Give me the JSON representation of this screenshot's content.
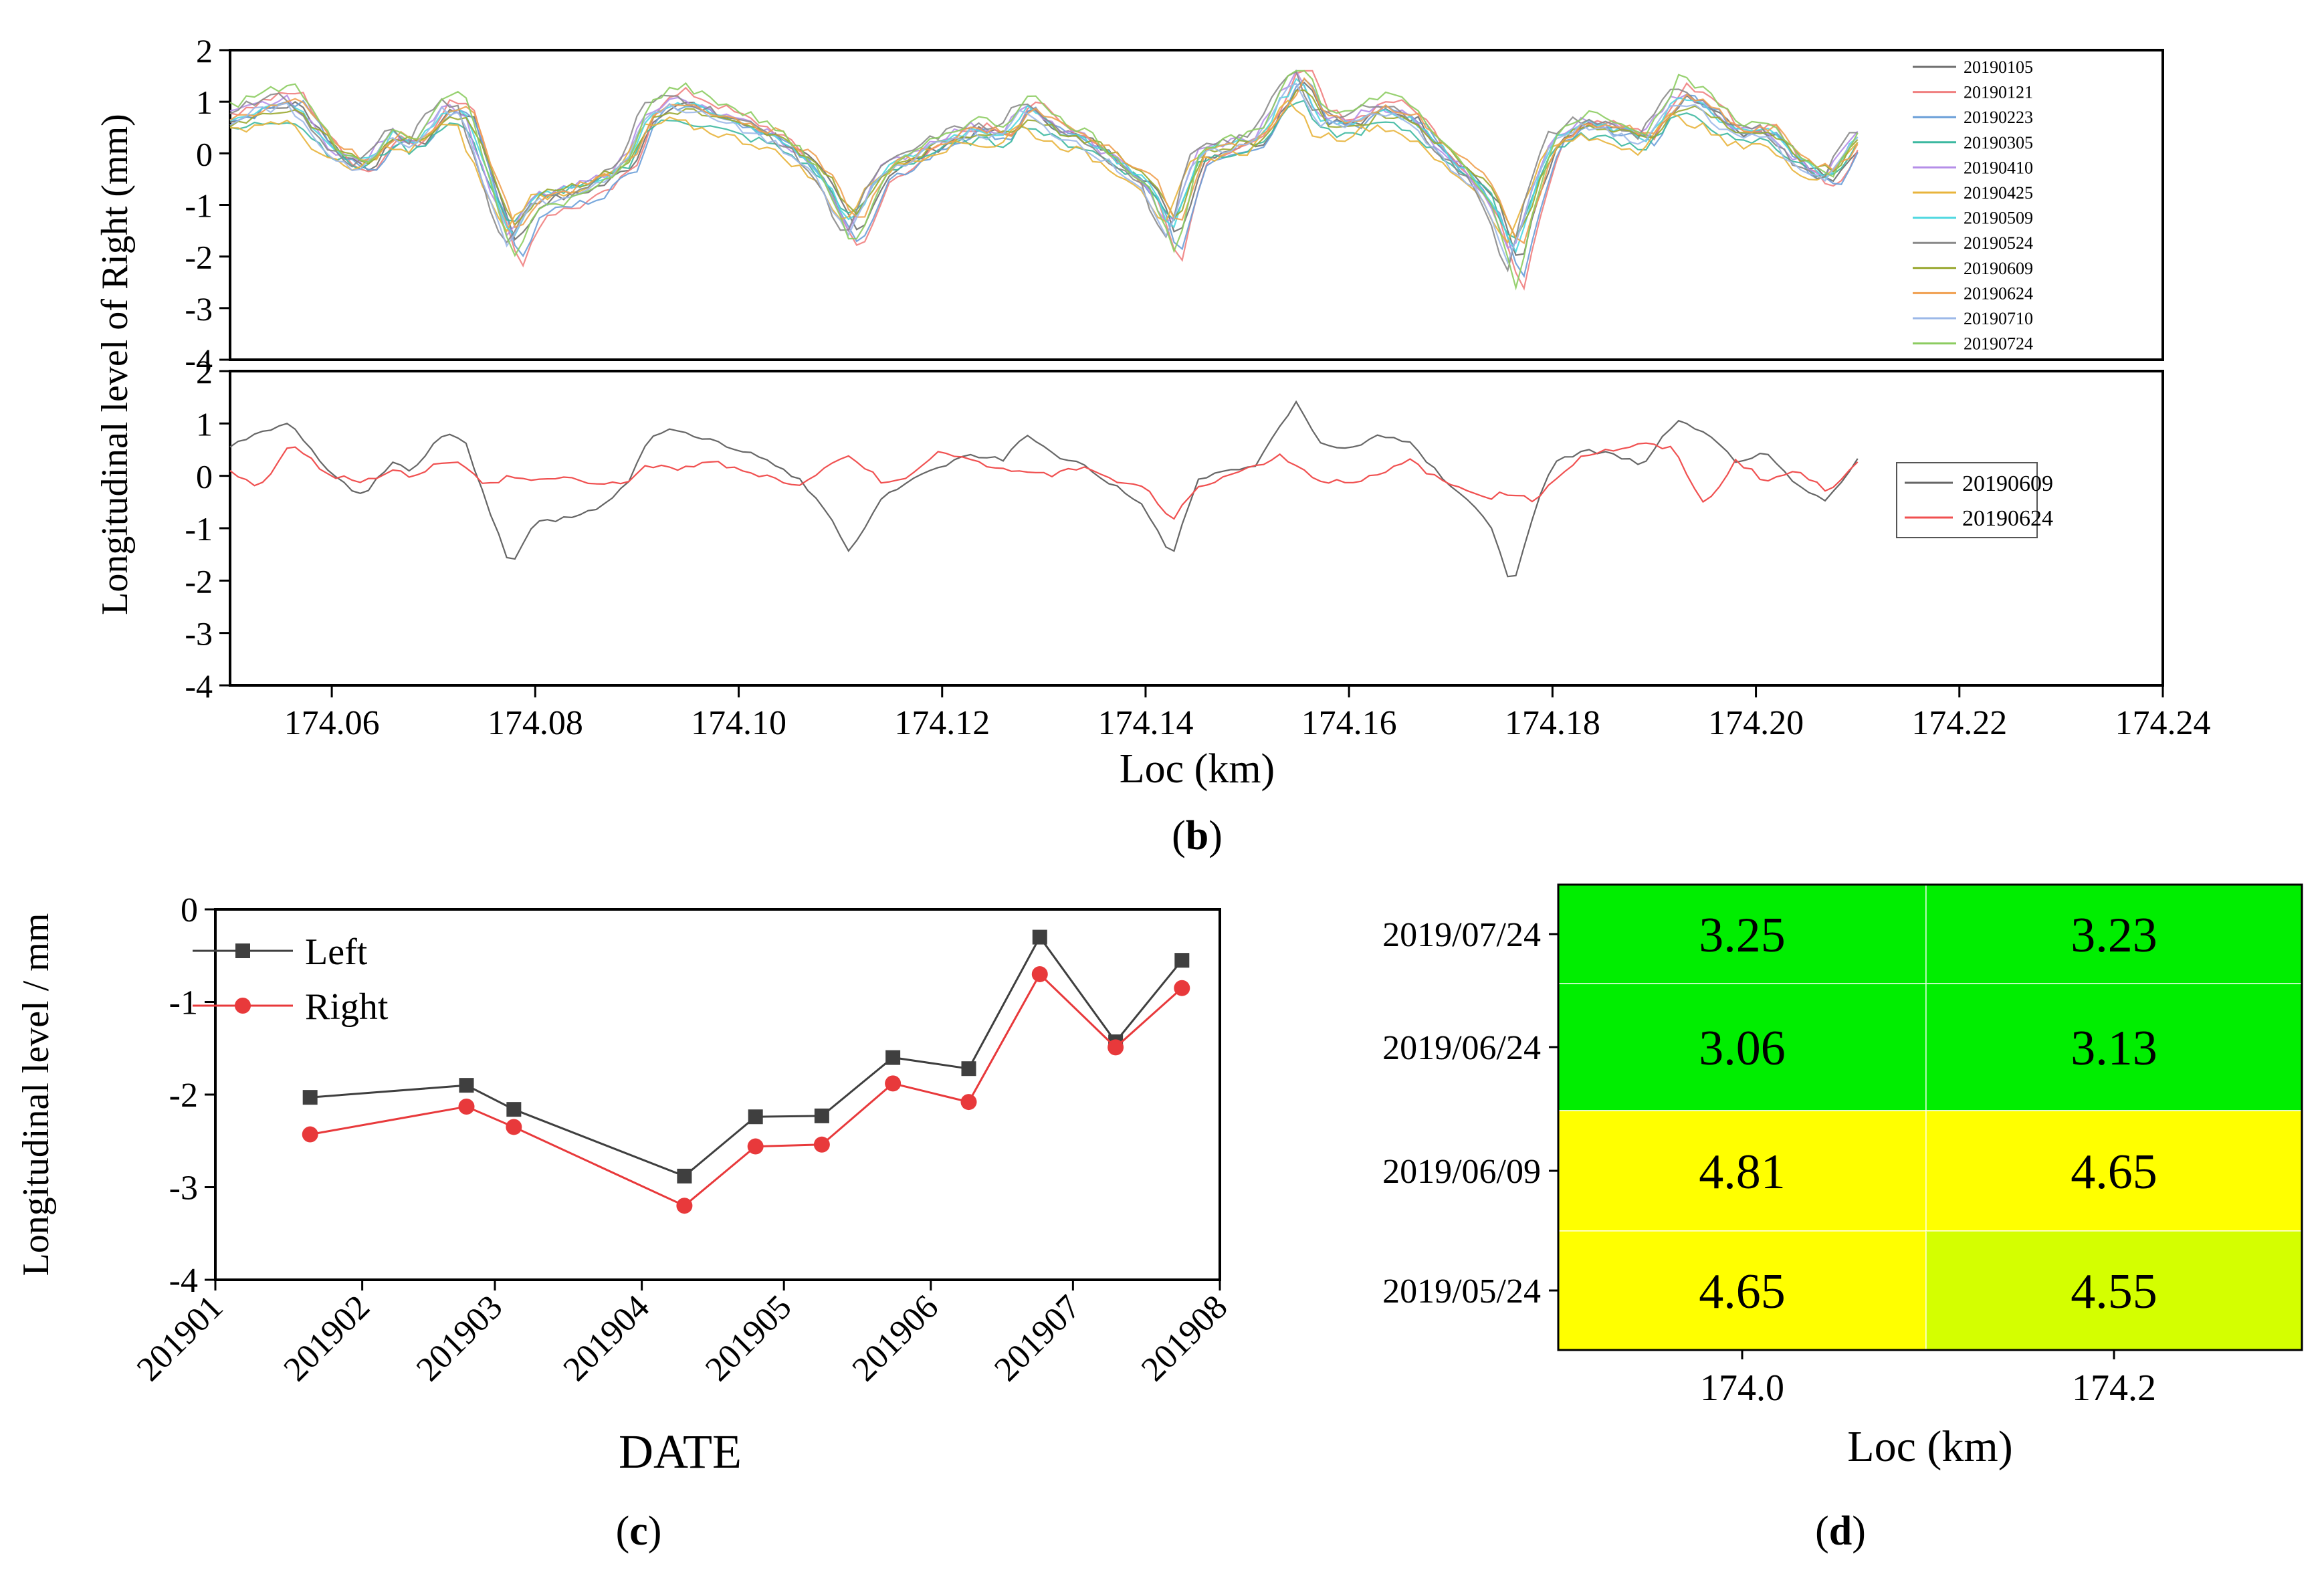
{
  "colors": {
    "left": "#3f3f3f",
    "right": "#e8393b",
    "green": "#00ee00",
    "yellow": "#ffff00",
    "yellow_green": "#d4ff00"
  },
  "panel_b": {
    "caption_b": "b",
    "ylabel": "Longitudinal level of Right  (mm)",
    "xlabel": "Loc (km)",
    "x_ticks": [
      "174.06",
      "174.08",
      "174.10",
      "174.12",
      "174.14",
      "174.16",
      "174.18",
      "174.20",
      "174.22",
      "174.24"
    ],
    "y_ticks": [
      "2",
      "1",
      "0",
      "-1",
      "-2",
      "-3",
      "-4"
    ]
  },
  "chart_data": [
    {
      "type": "line",
      "panel": "b-top",
      "xlim": [
        174.05,
        174.24
      ],
      "ylim": [
        -4,
        2
      ],
      "legend_position": "right",
      "grid": false,
      "series": [
        {
          "name": "20190105",
          "color": "#6f6f6f"
        },
        {
          "name": "20190121",
          "color": "#f08080"
        },
        {
          "name": "20190223",
          "color": "#6a9fd8"
        },
        {
          "name": "20190305",
          "color": "#3cb8a0"
        },
        {
          "name": "20190410",
          "color": "#b58ee8"
        },
        {
          "name": "20190425",
          "color": "#e8b43c"
        },
        {
          "name": "20190509",
          "color": "#4ed8e0"
        },
        {
          "name": "20190524",
          "color": "#8a8a8a"
        },
        {
          "name": "20190609",
          "color": "#9aa830"
        },
        {
          "name": "20190624",
          "color": "#f0a050"
        },
        {
          "name": "20190710",
          "color": "#9cb8e8"
        },
        {
          "name": "20190724",
          "color": "#8ccc60"
        }
      ],
      "profile_x": [
        174.05,
        174.053,
        174.056,
        174.06,
        174.063,
        174.066,
        174.068,
        174.071,
        174.073,
        174.075,
        174.0775,
        174.08,
        174.083,
        174.086,
        174.089,
        174.091,
        174.094,
        174.097,
        174.1,
        174.103,
        174.106,
        174.108,
        174.111,
        174.114,
        174.117,
        174.12,
        174.123,
        174.126,
        174.128,
        174.131,
        174.134,
        174.137,
        174.14,
        174.1425,
        174.145,
        174.148,
        174.151,
        174.153,
        174.155,
        174.157,
        174.16,
        174.163,
        174.166,
        174.169,
        174.172,
        174.174,
        174.176,
        174.178,
        174.18,
        174.183,
        174.186,
        174.189,
        174.192,
        174.195,
        174.198,
        174.201,
        174.204,
        174.207,
        174.21
      ],
      "profile_y": [
        0.6,
        0.8,
        0.9,
        0.0,
        -0.3,
        0.3,
        0.1,
        0.8,
        0.7,
        -0.4,
        -1.7,
        -0.9,
        -0.8,
        -0.6,
        -0.2,
        0.7,
        0.9,
        0.7,
        0.5,
        0.3,
        -0.1,
        -0.5,
        -1.5,
        -0.4,
        -0.1,
        0.2,
        0.4,
        0.3,
        0.8,
        0.4,
        0.2,
        -0.2,
        -0.6,
        -1.6,
        -0.1,
        0.1,
        0.2,
        0.9,
        1.4,
        0.6,
        0.5,
        0.8,
        0.6,
        0.0,
        -0.5,
        -1.0,
        -2.1,
        -0.8,
        0.2,
        0.5,
        0.4,
        0.2,
        1.0,
        0.8,
        0.3,
        0.4,
        -0.2,
        -0.5,
        0.3
      ]
    },
    {
      "type": "line",
      "panel": "b-bottom",
      "xlim": [
        174.05,
        174.24
      ],
      "ylim": [
        -4,
        2
      ],
      "legend_position": "right",
      "series": [
        {
          "name": "20190609",
          "color": "#666666",
          "x": [
            174.05,
            174.053,
            174.056,
            174.06,
            174.063,
            174.066,
            174.068,
            174.071,
            174.073,
            174.075,
            174.0775,
            174.08,
            174.083,
            174.086,
            174.089,
            174.091,
            174.094,
            174.097,
            174.1,
            174.103,
            174.106,
            174.108,
            174.111,
            174.114,
            174.117,
            174.12,
            174.123,
            174.126,
            174.128,
            174.131,
            174.134,
            174.137,
            174.14,
            174.1425,
            174.145,
            174.148,
            174.151,
            174.153,
            174.155,
            174.157,
            174.16,
            174.163,
            174.166,
            174.169,
            174.172,
            174.174,
            174.176,
            174.178,
            174.18,
            174.183,
            174.186,
            174.189,
            174.192,
            174.195,
            174.198,
            174.201,
            174.204,
            174.207,
            174.21
          ],
          "y": [
            0.6,
            0.8,
            1.0,
            0.0,
            -0.4,
            0.3,
            0.1,
            0.8,
            0.7,
            -0.4,
            -1.7,
            -0.9,
            -0.8,
            -0.6,
            -0.2,
            0.7,
            0.9,
            0.7,
            0.5,
            0.3,
            -0.1,
            -0.5,
            -1.45,
            -0.4,
            -0.1,
            0.2,
            0.4,
            0.3,
            0.8,
            0.4,
            0.2,
            -0.2,
            -0.6,
            -1.6,
            -0.1,
            0.1,
            0.2,
            0.9,
            1.45,
            0.6,
            0.5,
            0.8,
            0.6,
            0.0,
            -0.5,
            -1.0,
            -2.15,
            -0.8,
            0.2,
            0.5,
            0.4,
            0.2,
            1.05,
            0.8,
            0.3,
            0.4,
            -0.2,
            -0.5,
            0.3
          ]
        },
        {
          "name": "20190624",
          "color": "#f05050",
          "x": [
            174.05,
            174.053,
            174.056,
            174.06,
            174.063,
            174.066,
            174.068,
            174.071,
            174.073,
            174.075,
            174.0775,
            174.08,
            174.083,
            174.086,
            174.089,
            174.091,
            174.094,
            174.097,
            174.1,
            174.103,
            174.106,
            174.108,
            174.111,
            174.114,
            174.117,
            174.12,
            174.123,
            174.126,
            174.128,
            174.131,
            174.134,
            174.137,
            174.14,
            174.1425,
            174.145,
            174.148,
            174.151,
            174.153,
            174.155,
            174.157,
            174.16,
            174.163,
            174.166,
            174.169,
            174.172,
            174.174,
            174.176,
            174.178,
            174.18,
            174.183,
            174.186,
            174.189,
            174.192,
            174.195,
            174.198,
            174.201,
            174.204,
            174.207,
            174.21
          ],
          "y": [
            0.1,
            -0.2,
            0.6,
            0.0,
            -0.1,
            0.1,
            0.0,
            0.3,
            0.2,
            -0.2,
            0.0,
            -0.1,
            0.0,
            -0.2,
            -0.1,
            0.2,
            0.1,
            0.3,
            0.1,
            0.0,
            -0.2,
            0.1,
            0.4,
            -0.1,
            0.0,
            0.5,
            0.3,
            0.1,
            0.1,
            0.0,
            0.2,
            -0.1,
            -0.2,
            -0.9,
            -0.2,
            0.0,
            0.2,
            0.4,
            0.2,
            -0.1,
            -0.1,
            0.0,
            0.3,
            -0.1,
            -0.3,
            -0.4,
            -0.3,
            -0.5,
            -0.1,
            0.4,
            0.5,
            0.6,
            0.5,
            -0.6,
            0.3,
            -0.1,
            0.1,
            -0.3,
            0.3
          ]
        }
      ]
    },
    {
      "type": "line",
      "panel": "c",
      "caption": "c",
      "xlabel": "DATE",
      "ylabel": "Longitudinal level / mm",
      "x_ticks": [
        "201901",
        "201902",
        "201903",
        "201904",
        "201905",
        "201906",
        "201907",
        "201908"
      ],
      "y_ticks": [
        "0",
        "-1",
        "-2",
        "-3",
        "-4"
      ],
      "xlim": [
        "2019-01-01",
        "2019-08-01"
      ],
      "ylim": [
        -4,
        0
      ],
      "legend_position": "top-left",
      "series": [
        {
          "name": "Left",
          "marker": "square",
          "x": [
            "2019-01-21",
            "2019-02-23",
            "2019-03-05",
            "2019-04-10",
            "2019-04-25",
            "2019-05-09",
            "2019-05-24",
            "2019-06-09",
            "2019-06-24",
            "2019-07-10",
            "2019-07-24"
          ],
          "y": [
            -2.03,
            -1.9,
            -2.16,
            -2.88,
            -2.24,
            -2.23,
            -1.6,
            -1.72,
            -0.3,
            -1.43,
            -0.55
          ]
        },
        {
          "name": "Right",
          "marker": "circle",
          "x": [
            "2019-01-21",
            "2019-02-23",
            "2019-03-05",
            "2019-04-10",
            "2019-04-25",
            "2019-05-09",
            "2019-05-24",
            "2019-06-09",
            "2019-06-24",
            "2019-07-10",
            "2019-07-24"
          ],
          "y": [
            -2.43,
            -2.13,
            -2.35,
            -3.2,
            -2.56,
            -2.54,
            -1.88,
            -2.08,
            -0.7,
            -1.49,
            -0.85
          ]
        }
      ]
    },
    {
      "type": "heatmap",
      "panel": "d",
      "caption": "d",
      "xlabel": "Loc (km)",
      "x_categories": [
        "174.0",
        "174.2"
      ],
      "y_categories": [
        "2019/07/24",
        "2019/06/24",
        "2019/06/09",
        "2019/05/24"
      ],
      "values": [
        [
          "3.25",
          "3.23"
        ],
        [
          "3.06",
          "3.13"
        ],
        [
          "4.81",
          "4.65"
        ],
        [
          "4.65",
          "4.55"
        ]
      ],
      "cell_colors": [
        [
          "green",
          "green"
        ],
        [
          "green",
          "green"
        ],
        [
          "yellow",
          "yellow"
        ],
        [
          "yellow",
          "yellow_green"
        ]
      ]
    }
  ]
}
